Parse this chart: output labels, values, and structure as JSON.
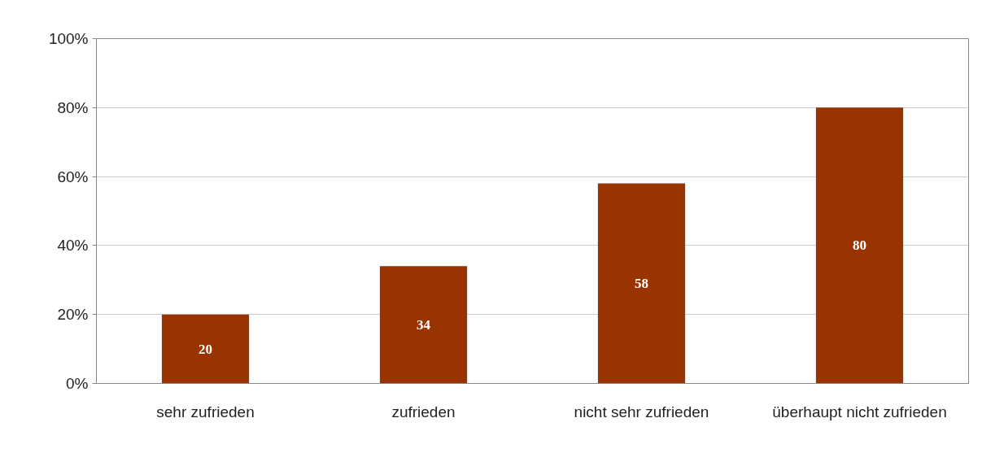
{
  "chart_data": {
    "type": "bar",
    "categories": [
      "sehr zufrieden",
      "zufrieden",
      "nicht sehr zufrieden",
      "überhaupt nicht zufrieden"
    ],
    "values": [
      20,
      34,
      58,
      80
    ],
    "color": "#993300",
    "data_labels": true,
    "ylim": [
      0,
      100
    ],
    "yticks": [
      {
        "value": 0,
        "label": "0%"
      },
      {
        "value": 20,
        "label": "20%"
      },
      {
        "value": 40,
        "label": "40%"
      },
      {
        "value": 60,
        "label": "60%"
      },
      {
        "value": 80,
        "label": "80%"
      },
      {
        "value": 100,
        "label": "100%"
      }
    ],
    "grid": "y"
  }
}
